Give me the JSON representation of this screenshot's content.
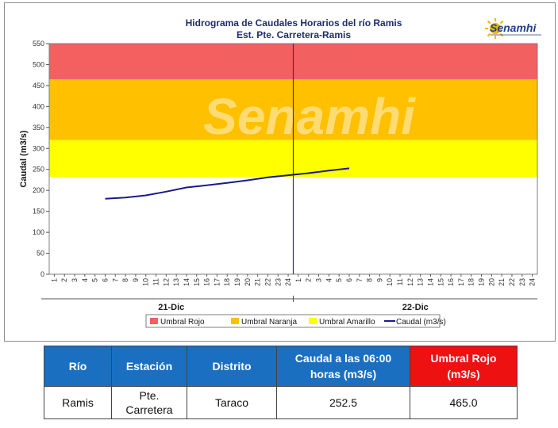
{
  "chart_data": {
    "type": "line",
    "title": "Hidrograma de Caudales Horarios del río Ramis",
    "subtitle": "Est. Pte. Carretera-Ramis",
    "ylabel": "Caudal  (m3/s)",
    "ylim": [
      0,
      550
    ],
    "yticks": [
      0,
      50,
      100,
      150,
      200,
      250,
      300,
      350,
      400,
      450,
      500,
      550
    ],
    "xticks_day1": [
      "1",
      "2",
      "3",
      "4",
      "5",
      "6",
      "7",
      "8",
      "9",
      "10",
      "11",
      "12",
      "13",
      "14",
      "15",
      "16",
      "17",
      "18",
      "19",
      "20",
      "21",
      "22",
      "23",
      "24"
    ],
    "xticks_day2": [
      "1",
      "2",
      "3",
      "4",
      "5",
      "6",
      "7",
      "8",
      "9",
      "10",
      "11",
      "12",
      "13",
      "14",
      "15",
      "16",
      "17",
      "18",
      "19",
      "20",
      "21",
      "22",
      "23",
      "24"
    ],
    "days": [
      "21-Dic",
      "22-Dic"
    ],
    "thresholds": [
      {
        "name": "Umbral Rojo",
        "from": 465,
        "to": 550,
        "color": "#f26060"
      },
      {
        "name": "Umbral Naranja",
        "from": 320,
        "to": 465,
        "color": "#ffc000"
      },
      {
        "name": "Umbral Amarillo",
        "from": 232,
        "to": 320,
        "color": "#ffff00"
      }
    ],
    "series": [
      {
        "name": "Caudal (m3/s)",
        "color": "#1a1a8c",
        "points": [
          {
            "day": 1,
            "hour": 6,
            "value": 180
          },
          {
            "day": 1,
            "hour": 8,
            "value": 183
          },
          {
            "day": 1,
            "hour": 10,
            "value": 188
          },
          {
            "day": 1,
            "hour": 12,
            "value": 197
          },
          {
            "day": 1,
            "hour": 14,
            "value": 207
          },
          {
            "day": 1,
            "hour": 16,
            "value": 212
          },
          {
            "day": 1,
            "hour": 18,
            "value": 218
          },
          {
            "day": 1,
            "hour": 20,
            "value": 224
          },
          {
            "day": 1,
            "hour": 22,
            "value": 231
          },
          {
            "day": 1,
            "hour": 24,
            "value": 236
          },
          {
            "day": 2,
            "hour": 2,
            "value": 241
          },
          {
            "day": 2,
            "hour": 4,
            "value": 247
          },
          {
            "day": 2,
            "hour": 6,
            "value": 252.5
          }
        ]
      }
    ],
    "current_time_marker": {
      "day": 1,
      "hour": 24
    },
    "legend": [
      "Umbral Rojo",
      "Umbral Naranja",
      "Umbral Amarillo",
      "Caudal (m3/s)"
    ],
    "legend_position": "bottom",
    "watermark": "Senamhi"
  },
  "logo": {
    "text": "Senamhi"
  },
  "table": {
    "headers": [
      "Río",
      "Estación",
      "Distrito",
      "Caudal a las 06:00 horas (m3/s)",
      "Umbral Rojo (m3/s)"
    ],
    "row": [
      "Ramis",
      "Pte. Carretera",
      "Taraco",
      "252.5",
      "465.0"
    ]
  }
}
